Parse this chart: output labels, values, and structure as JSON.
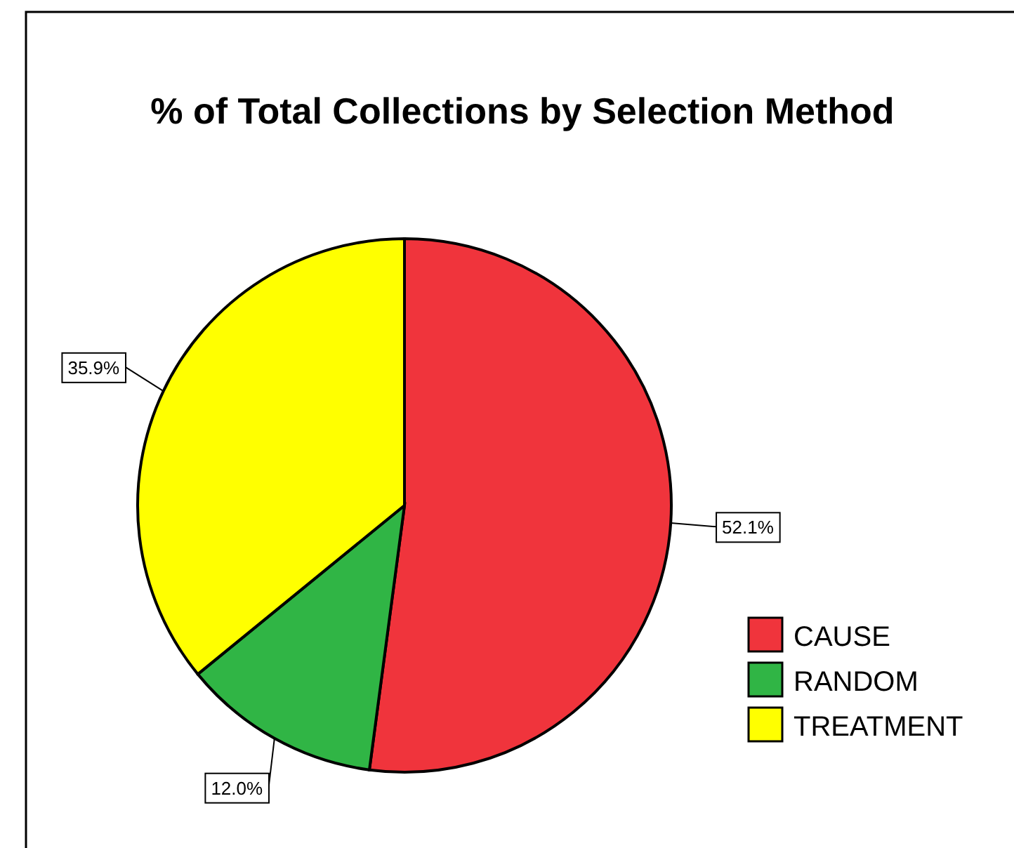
{
  "chart_data": {
    "type": "pie",
    "title": "% of Total Collections by Selection Method",
    "categories": [
      "CAUSE",
      "RANDOM",
      "TREATMENT"
    ],
    "values": [
      52.1,
      12.0,
      35.9
    ],
    "colors": [
      "#f0343c",
      "#30b545",
      "#ffff00"
    ],
    "value_labels": [
      "52.1%",
      "12.0%",
      "35.9%"
    ],
    "legend": "right"
  }
}
